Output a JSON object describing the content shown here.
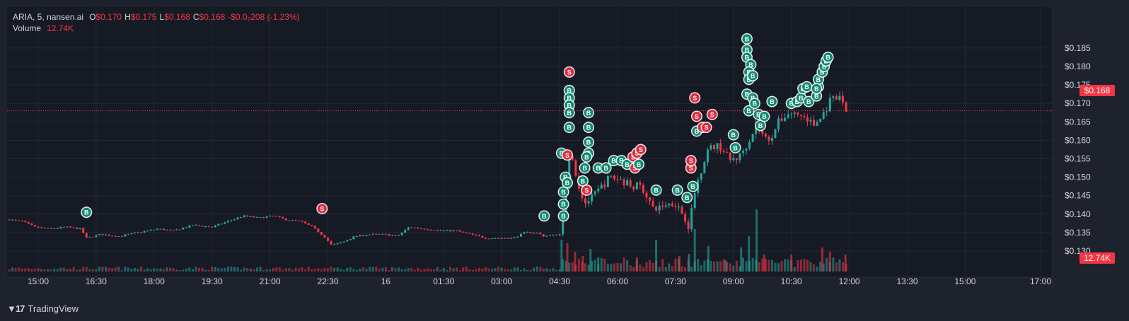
{
  "legend": {
    "symbol": "ARIA, 5, nansen.ai",
    "o_label": "O",
    "o_value": "$0.170",
    "h_label": "H",
    "h_value": "$0.175",
    "l_label": "L",
    "l_value": "$0.168",
    "c_label": "C",
    "c_value": "$0.168",
    "change": "-$0.0₂208 (-1.23%)",
    "volume_label": "Volume",
    "volume_value": "12.74K"
  },
  "last_price_label": "$0.168",
  "last_volume_label": "12.74K",
  "branding": "TradingView",
  "colors": {
    "up": "#26a69a",
    "down": "#f23645",
    "buy_marker": "#0f8a6e",
    "sell_marker": "#e0283d",
    "background": "#1e222d"
  },
  "chart_data": {
    "type": "candlestick",
    "timeframe_minutes": 5,
    "x_tick_labels": [
      "15:00",
      "16:30",
      "18:00",
      "19:30",
      "21:00",
      "22:30",
      "16",
      "01:30",
      "03:00",
      "04:30",
      "06:00",
      "07:30",
      "09:00",
      "10:30",
      "12:00",
      "13:30",
      "15:00",
      "17:00"
    ],
    "y_tick_labels": [
      "$0.130",
      "$0.135",
      "$0.140",
      "$0.145",
      "$0.150",
      "$0.155",
      "$0.160",
      "$0.165",
      "$0.170",
      "$0.175",
      "$0.180",
      "$0.185"
    ],
    "ylim": [
      0.1285,
      0.1875
    ],
    "price_path": [
      [
        14.25,
        0.1385
      ],
      [
        14.6,
        0.138
      ],
      [
        14.9,
        0.1365
      ],
      [
        15.3,
        0.136
      ],
      [
        15.7,
        0.1365
      ],
      [
        16.1,
        0.136
      ],
      [
        16.25,
        0.1335
      ],
      [
        16.6,
        0.1345
      ],
      [
        17.1,
        0.134
      ],
      [
        17.6,
        0.135
      ],
      [
        18.1,
        0.136
      ],
      [
        18.5,
        0.1355
      ],
      [
        19.0,
        0.137
      ],
      [
        19.5,
        0.1365
      ],
      [
        19.9,
        0.138
      ],
      [
        20.3,
        0.1395
      ],
      [
        20.7,
        0.139
      ],
      [
        21.1,
        0.1395
      ],
      [
        21.4,
        0.1385
      ],
      [
        21.8,
        0.138
      ],
      [
        22.1,
        0.1365
      ],
      [
        22.4,
        0.134
      ],
      [
        22.6,
        0.1315
      ],
      [
        22.9,
        0.1325
      ],
      [
        23.2,
        0.134
      ],
      [
        23.6,
        0.1345
      ],
      [
        24.0,
        0.1345
      ],
      [
        24.3,
        0.134
      ],
      [
        24.6,
        0.1365
      ],
      [
        25.0,
        0.136
      ],
      [
        25.4,
        0.1355
      ],
      [
        25.8,
        0.1355
      ],
      [
        26.2,
        0.1345
      ],
      [
        26.6,
        0.1335
      ],
      [
        27.0,
        0.1335
      ],
      [
        27.3,
        0.1335
      ],
      [
        27.6,
        0.135
      ],
      [
        27.9,
        0.135
      ],
      [
        28.1,
        0.134
      ],
      [
        28.5,
        0.1345
      ],
      [
        28.55,
        0.1385
      ],
      [
        28.65,
        0.1465
      ],
      [
        28.75,
        0.1555
      ],
      [
        28.8,
        0.1575
      ],
      [
        28.9,
        0.152
      ],
      [
        29.0,
        0.1475
      ],
      [
        29.15,
        0.143
      ],
      [
        29.35,
        0.1445
      ],
      [
        29.55,
        0.147
      ],
      [
        29.8,
        0.15
      ],
      [
        30.05,
        0.1495
      ],
      [
        30.3,
        0.148
      ],
      [
        30.6,
        0.1475
      ],
      [
        30.8,
        0.1445
      ],
      [
        30.9,
        0.141
      ],
      [
        31.2,
        0.1425
      ],
      [
        31.5,
        0.143
      ],
      [
        31.75,
        0.139
      ],
      [
        31.85,
        0.1365
      ],
      [
        32.0,
        0.146
      ],
      [
        32.3,
        0.157
      ],
      [
        32.5,
        0.1585
      ],
      [
        32.7,
        0.158
      ],
      [
        32.9,
        0.1545
      ],
      [
        33.15,
        0.1555
      ],
      [
        33.4,
        0.16
      ],
      [
        33.6,
        0.1645
      ],
      [
        33.8,
        0.1605
      ],
      [
        33.95,
        0.1605
      ],
      [
        34.2,
        0.1655
      ],
      [
        34.45,
        0.1675
      ],
      [
        34.8,
        0.1665
      ],
      [
        35.1,
        0.164
      ],
      [
        35.3,
        0.1665
      ],
      [
        35.5,
        0.1705
      ],
      [
        35.75,
        0.1715
      ],
      [
        35.85,
        0.17
      ],
      [
        35.92,
        0.168
      ]
    ],
    "volume_peaks": [
      [
        28.55,
        "up",
        45
      ],
      [
        28.7,
        "down",
        40
      ],
      [
        28.9,
        "down",
        28
      ],
      [
        29.1,
        "down",
        22
      ],
      [
        29.3,
        "up",
        32
      ],
      [
        29.5,
        "up",
        20
      ],
      [
        30.5,
        "down",
        20
      ],
      [
        31.0,
        "up",
        45
      ],
      [
        31.6,
        "down",
        22
      ],
      [
        31.85,
        "up",
        25
      ],
      [
        32.0,
        "up",
        60
      ],
      [
        32.35,
        "up",
        36
      ],
      [
        32.8,
        "up",
        16
      ],
      [
        33.2,
        "up",
        34
      ],
      [
        33.4,
        "up",
        50
      ],
      [
        33.6,
        "up",
        88
      ],
      [
        33.8,
        "down",
        24
      ],
      [
        34.5,
        "down",
        24
      ],
      [
        35.3,
        "down",
        34
      ],
      [
        35.5,
        "down",
        28
      ],
      [
        35.9,
        "down",
        24
      ]
    ],
    "trade_markers": [
      {
        "t": 16.25,
        "p": 0.1405,
        "side": "B"
      },
      {
        "t": 22.35,
        "p": 0.1415,
        "side": "S"
      },
      {
        "t": 28.1,
        "p": 0.1395,
        "side": "B"
      },
      {
        "t": 28.6,
        "p": 0.1395,
        "side": "B"
      },
      {
        "t": 28.6,
        "p": 0.1427,
        "side": "B"
      },
      {
        "t": 28.6,
        "p": 0.146,
        "side": "B"
      },
      {
        "t": 28.65,
        "p": 0.15,
        "side": "B"
      },
      {
        "t": 28.7,
        "p": 0.1485,
        "side": "B"
      },
      {
        "t": 28.55,
        "p": 0.1565,
        "side": "B"
      },
      {
        "t": 28.7,
        "p": 0.156,
        "side": "S"
      },
      {
        "t": 28.75,
        "p": 0.1785,
        "side": "S"
      },
      {
        "t": 28.75,
        "p": 0.1735,
        "side": "B"
      },
      {
        "t": 28.75,
        "p": 0.1715,
        "side": "B"
      },
      {
        "t": 28.75,
        "p": 0.1695,
        "side": "B"
      },
      {
        "t": 28.75,
        "p": 0.1675,
        "side": "B"
      },
      {
        "t": 28.75,
        "p": 0.1635,
        "side": "B"
      },
      {
        "t": 29.25,
        "p": 0.1675,
        "side": "B"
      },
      {
        "t": 29.25,
        "p": 0.1635,
        "side": "B"
      },
      {
        "t": 29.25,
        "p": 0.1595,
        "side": "B"
      },
      {
        "t": 29.25,
        "p": 0.1565,
        "side": "B"
      },
      {
        "t": 29.2,
        "p": 0.1555,
        "side": "B"
      },
      {
        "t": 29.15,
        "p": 0.1525,
        "side": "B"
      },
      {
        "t": 29.1,
        "p": 0.149,
        "side": "B"
      },
      {
        "t": 29.2,
        "p": 0.1465,
        "side": "S"
      },
      {
        "t": 29.5,
        "p": 0.1525,
        "side": "B"
      },
      {
        "t": 29.7,
        "p": 0.1525,
        "side": "B"
      },
      {
        "t": 29.9,
        "p": 0.1545,
        "side": "B"
      },
      {
        "t": 30.1,
        "p": 0.1545,
        "side": "B"
      },
      {
        "t": 30.25,
        "p": 0.1535,
        "side": "B"
      },
      {
        "t": 30.4,
        "p": 0.1555,
        "side": "S"
      },
      {
        "t": 30.45,
        "p": 0.1525,
        "side": "S"
      },
      {
        "t": 30.5,
        "p": 0.1565,
        "side": "S"
      },
      {
        "t": 30.6,
        "p": 0.1575,
        "side": "S"
      },
      {
        "t": 30.55,
        "p": 0.1535,
        "side": "B"
      },
      {
        "t": 31.0,
        "p": 0.1465,
        "side": "B"
      },
      {
        "t": 31.55,
        "p": 0.1465,
        "side": "B"
      },
      {
        "t": 31.8,
        "p": 0.1445,
        "side": "B"
      },
      {
        "t": 31.95,
        "p": 0.1475,
        "side": "B"
      },
      {
        "t": 31.9,
        "p": 0.1525,
        "side": "S"
      },
      {
        "t": 31.9,
        "p": 0.1545,
        "side": "S"
      },
      {
        "t": 32.05,
        "p": 0.1625,
        "side": "B"
      },
      {
        "t": 32.05,
        "p": 0.1665,
        "side": "S"
      },
      {
        "t": 32.2,
        "p": 0.1635,
        "side": "S"
      },
      {
        "t": 32.3,
        "p": 0.1635,
        "side": "S"
      },
      {
        "t": 32.45,
        "p": 0.167,
        "side": "S"
      },
      {
        "t": 32.0,
        "p": 0.1715,
        "side": "S"
      },
      {
        "t": 33.0,
        "p": 0.1615,
        "side": "B"
      },
      {
        "t": 33.05,
        "p": 0.158,
        "side": "B"
      },
      {
        "t": 33.35,
        "p": 0.1875,
        "side": "B"
      },
      {
        "t": 33.35,
        "p": 0.1845,
        "side": "B"
      },
      {
        "t": 33.35,
        "p": 0.1825,
        "side": "B"
      },
      {
        "t": 33.45,
        "p": 0.1805,
        "side": "B"
      },
      {
        "t": 33.4,
        "p": 0.1785,
        "side": "B"
      },
      {
        "t": 33.4,
        "p": 0.1765,
        "side": "B"
      },
      {
        "t": 33.5,
        "p": 0.1775,
        "side": "B"
      },
      {
        "t": 33.35,
        "p": 0.1725,
        "side": "B"
      },
      {
        "t": 33.4,
        "p": 0.168,
        "side": "B"
      },
      {
        "t": 33.5,
        "p": 0.1715,
        "side": "B"
      },
      {
        "t": 33.55,
        "p": 0.17,
        "side": "B"
      },
      {
        "t": 33.65,
        "p": 0.167,
        "side": "B"
      },
      {
        "t": 33.7,
        "p": 0.164,
        "side": "B"
      },
      {
        "t": 33.8,
        "p": 0.1665,
        "side": "B"
      },
      {
        "t": 34.0,
        "p": 0.1705,
        "side": "B"
      },
      {
        "t": 34.5,
        "p": 0.17,
        "side": "B"
      },
      {
        "t": 34.65,
        "p": 0.1705,
        "side": "B"
      },
      {
        "t": 34.75,
        "p": 0.1715,
        "side": "B"
      },
      {
        "t": 34.8,
        "p": 0.174,
        "side": "B"
      },
      {
        "t": 34.9,
        "p": 0.1745,
        "side": "B"
      },
      {
        "t": 34.95,
        "p": 0.1705,
        "side": "B"
      },
      {
        "t": 35.15,
        "p": 0.172,
        "side": "B"
      },
      {
        "t": 35.2,
        "p": 0.1745,
        "side": "B"
      },
      {
        "t": 35.2,
        "p": 0.1765,
        "side": "B"
      },
      {
        "t": 35.3,
        "p": 0.1785,
        "side": "B"
      },
      {
        "t": 35.35,
        "p": 0.18,
        "side": "B"
      },
      {
        "t": 35.4,
        "p": 0.1815,
        "side": "B"
      },
      {
        "t": 35.45,
        "p": 0.1825,
        "side": "B"
      },
      {
        "t": 35.15,
        "p": 0.174,
        "side": "B"
      }
    ],
    "last_price": 0.168,
    "last_volume": "12.74K",
    "grid": true
  }
}
